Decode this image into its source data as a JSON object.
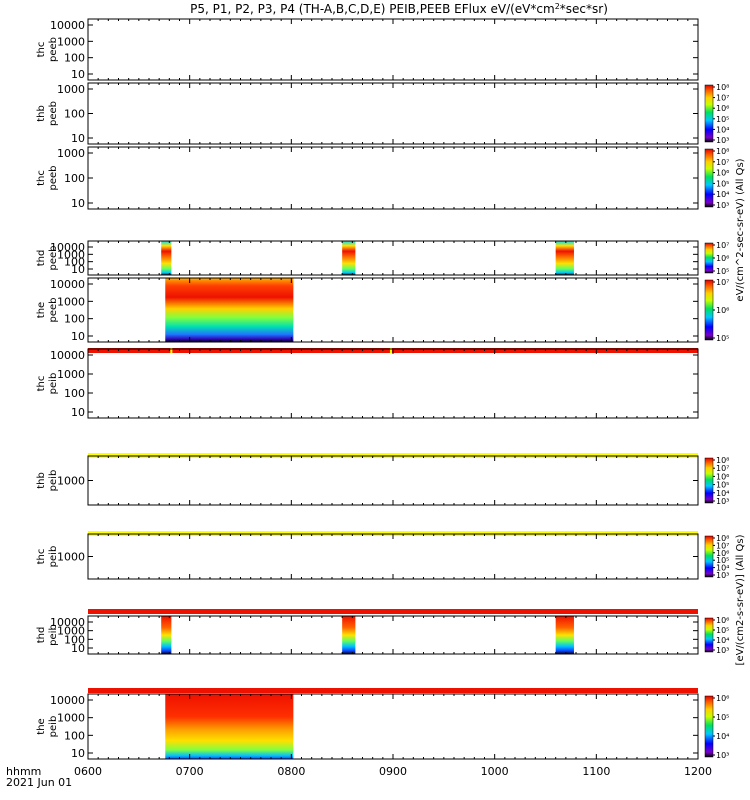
{
  "chart_data": {
    "type": "heatmap",
    "title": "P5, P1, P2, P3, P4 (TH-A,B,C,D,E) PEIB,PEEB EFlux eV/(eV*cm²*sec*sr)",
    "title_prefix": "P5, P1, P2, P3, P4 (TH-A,B,C,D,E) PEIB,PEEB EFlux eV/(eV*cm",
    "title_sup": "2",
    "title_suffix": "*sec*sr)",
    "xaxis": {
      "ticks": [
        "0600",
        "0700",
        "0800",
        "0900",
        "1000",
        "1100",
        "1200"
      ],
      "tick_values": [
        600,
        700,
        800,
        900,
        1000,
        1100,
        1200
      ],
      "range": [
        600,
        1200
      ],
      "label_line1": "hhmm",
      "label_line2": "2021 Jun 01"
    },
    "colormap": "rainbow (violet-blue-cyan-green-yellow-red)",
    "colorbar_label_electrons": "eV/(cm^2-sec-sr-eV) (All Qs)",
    "colorbar_label_ions": "[eV/(cm2-s-sr-eV)] (All Qs)",
    "panels": [
      {
        "label1": "thc",
        "label2": "peeb",
        "yticks": [
          "10000",
          "1000",
          "100",
          "10"
        ],
        "ytick_values": [
          10000,
          1000,
          100,
          10
        ],
        "data_intervals": [],
        "colorbar": false
      },
      {
        "label1": "thb",
        "label2": "peeb",
        "yticks": [
          "1000",
          "100",
          "10"
        ],
        "ytick_values": [
          1000,
          100,
          10
        ],
        "data_intervals": [],
        "colorbar": true,
        "cbar_ticks": [
          "10⁸",
          "10⁷",
          "10⁶",
          "10⁵",
          "10⁴",
          "10³"
        ]
      },
      {
        "label1": "thc",
        "label2": "peeb",
        "yticks": [
          "1000",
          "100",
          "10"
        ],
        "ytick_values": [
          1000,
          100,
          10
        ],
        "data_intervals": [],
        "colorbar": true,
        "cbar_ticks": [
          "10⁸",
          "10⁷",
          "10⁶",
          "10⁵",
          "10⁴",
          "10³"
        ]
      },
      {
        "label1": "thd",
        "label2": "peeb",
        "yticks": [
          "10000",
          "1000",
          "100",
          "10"
        ],
        "ytick_values": [
          10000,
          1000,
          100,
          10
        ],
        "data_intervals": [
          [
            672,
            682
          ],
          [
            850,
            863
          ],
          [
            1060,
            1078
          ]
        ],
        "top_bar": null,
        "colorbar": true,
        "cbar_ticks": [
          "10⁷",
          "10⁶",
          "10⁵"
        ]
      },
      {
        "label1": "the",
        "label2": "peeb",
        "yticks": [
          "10000",
          "1000",
          "100",
          "10"
        ],
        "ytick_values": [
          10000,
          1000,
          100,
          10
        ],
        "data_intervals": [
          [
            676,
            802
          ]
        ],
        "colorbar": true,
        "cbar_ticks": [
          "10⁷",
          "10⁶",
          "10⁵"
        ]
      },
      {
        "label1": "thc",
        "label2": "peib",
        "yticks": [
          "10000",
          "1000",
          "100",
          "10"
        ],
        "ytick_values": [
          10000,
          1000,
          100,
          10
        ],
        "data_intervals": [],
        "top_bar": "red",
        "colorbar": false
      },
      {
        "label1": "thb",
        "label2": "peib",
        "yticks": [
          "1000"
        ],
        "ytick_values": [
          1000
        ],
        "data_intervals": [],
        "top_bar": "yellow",
        "colorbar": true,
        "cbar_ticks": [
          "10⁸",
          "10⁷",
          "10⁶",
          "10⁵",
          "10⁴",
          "10³"
        ]
      },
      {
        "label1": "thc",
        "label2": "peib",
        "yticks": [
          "1000"
        ],
        "ytick_values": [
          1000
        ],
        "data_intervals": [],
        "top_bar": "yellow",
        "colorbar": true,
        "cbar_ticks": [
          "10⁸",
          "10⁷",
          "10⁶",
          "10⁵",
          "10⁴",
          "10³"
        ]
      },
      {
        "label1": "thd",
        "label2": "peib",
        "yticks": [
          "10000",
          "1000",
          "100",
          "10"
        ],
        "ytick_values": [
          10000,
          1000,
          100,
          10
        ],
        "data_intervals": [
          [
            672,
            682
          ],
          [
            850,
            863
          ],
          [
            1060,
            1078
          ]
        ],
        "top_bar": "red",
        "colorbar": true,
        "cbar_ticks": [
          "10⁶",
          "10⁵",
          "10⁴",
          "10³"
        ]
      },
      {
        "label1": "the",
        "label2": "peib",
        "yticks": [
          "10000",
          "1000",
          "100",
          "10"
        ],
        "ytick_values": [
          10000,
          1000,
          100,
          10
        ],
        "data_intervals": [
          [
            676,
            802
          ]
        ],
        "top_bar": "red",
        "colorbar": true,
        "cbar_ticks": [
          "10⁶",
          "10⁵",
          "10⁴",
          "10³"
        ]
      }
    ]
  }
}
